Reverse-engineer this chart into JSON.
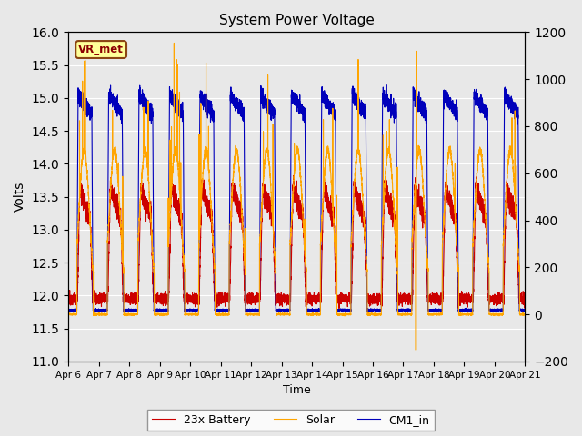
{
  "title": "System Power Voltage",
  "xlabel": "Time",
  "ylabel": "Volts",
  "ylim_left": [
    11.0,
    16.0
  ],
  "ylim_right": [
    -200,
    1200
  ],
  "yticks_left": [
    11.0,
    11.5,
    12.0,
    12.5,
    13.0,
    13.5,
    14.0,
    14.5,
    15.0,
    15.5,
    16.0
  ],
  "yticks_right": [
    -200,
    0,
    200,
    400,
    600,
    800,
    1000,
    1200
  ],
  "xticklabels": [
    "Apr 6",
    "Apr 7",
    "Apr 8",
    "Apr 9",
    "Apr 10",
    "Apr 11",
    "Apr 12",
    "Apr 13",
    "Apr 14",
    "Apr 15",
    "Apr 16",
    "Apr 17",
    "Apr 18",
    "Apr 19",
    "Apr 20",
    "Apr 21"
  ],
  "battery_color": "#cc0000",
  "solar_color": "#ffa500",
  "cm1_color": "#0000bb",
  "background_color": "#e8e8e8",
  "figure_color": "#e8e8e8",
  "legend_labels": [
    "23x Battery",
    "Solar",
    "CM1_in"
  ],
  "annotation_text": "VR_met",
  "num_days": 15,
  "figsize": [
    6.4,
    4.8
  ],
  "dpi": 100
}
